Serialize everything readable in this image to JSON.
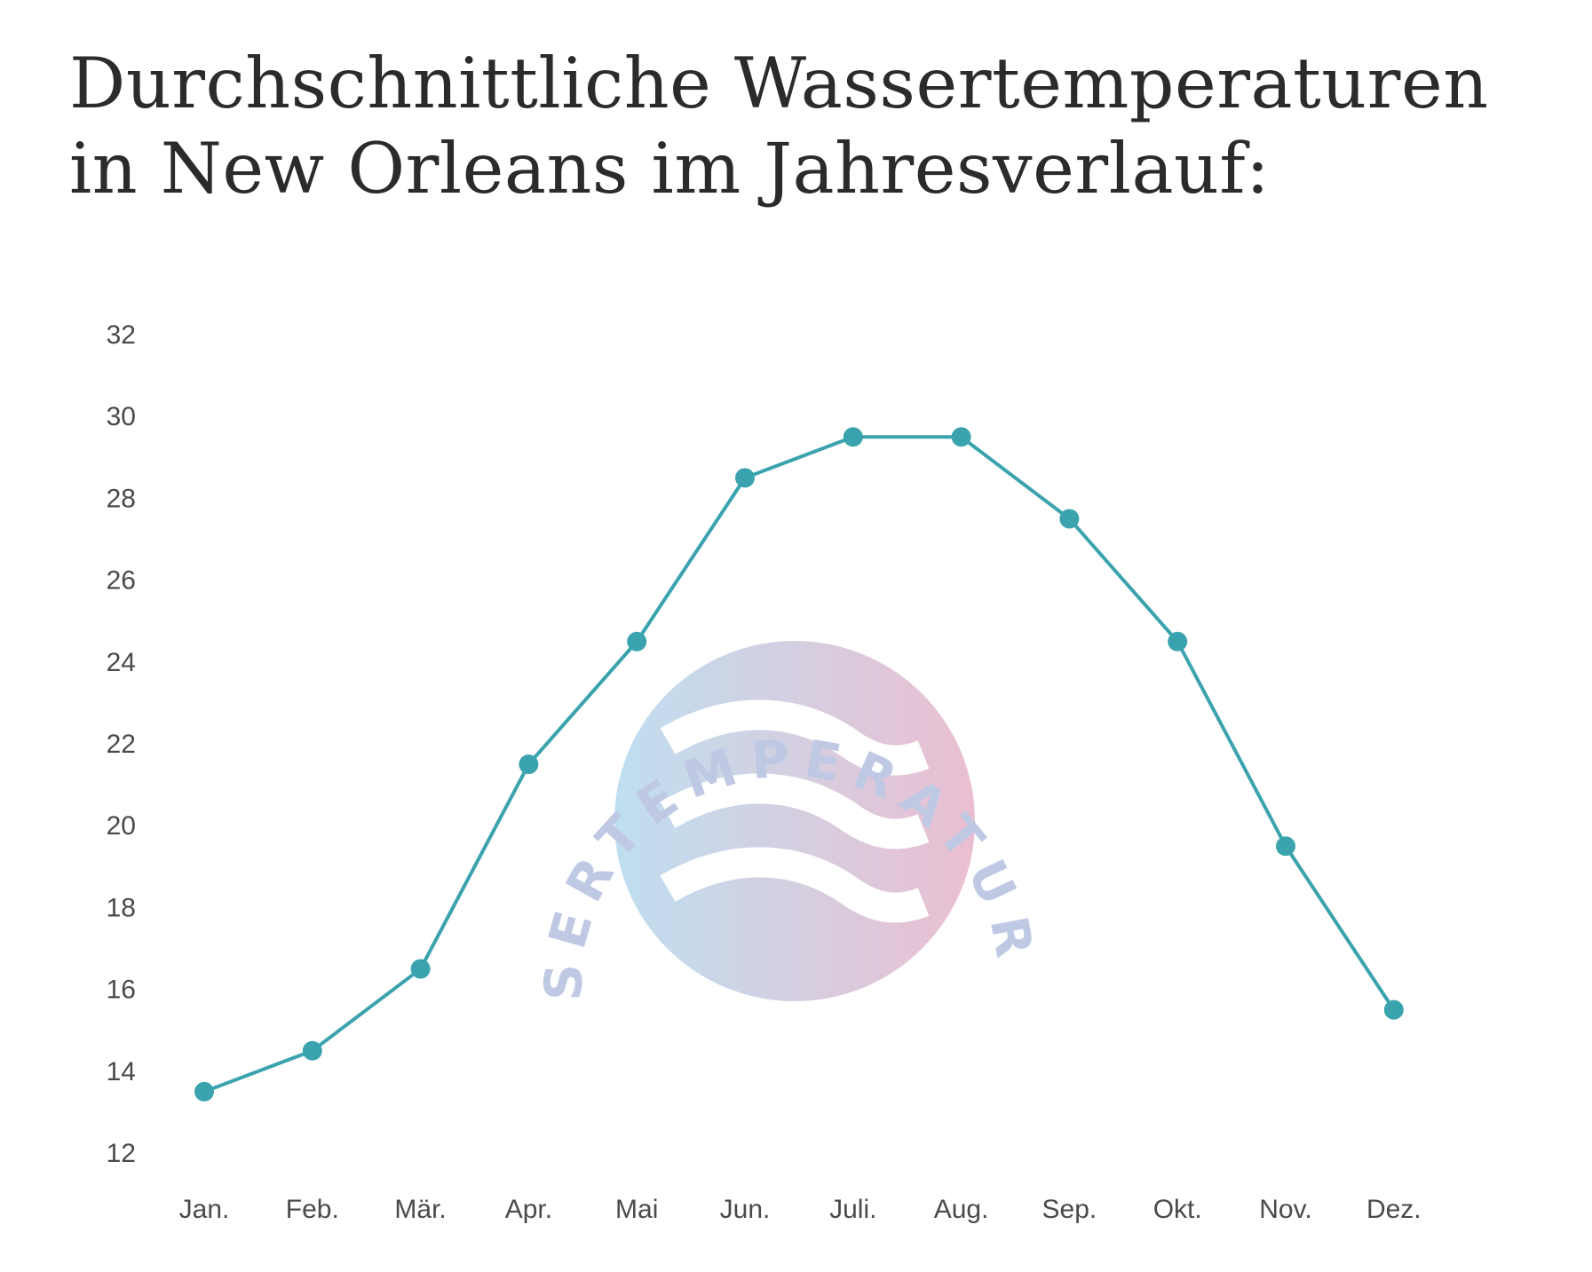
{
  "page": {
    "title": "Durchschnittliche Wassertemperaturen in New Orleans im Jahresverlauf:"
  },
  "watermark": {
    "text": "WASSERTEMPERATUR.ORG"
  },
  "colors": {
    "line": "#3aa3ae",
    "point": "#3aa3ae",
    "watermark_left": "#b8dcef",
    "watermark_right": "#e8b8cc"
  },
  "chart_data": {
    "type": "line",
    "categories": [
      "Jan.",
      "Feb.",
      "Mär.",
      "Apr.",
      "Mai",
      "Jun.",
      "Juli.",
      "Aug.",
      "Sep.",
      "Okt.",
      "Nov.",
      "Dez."
    ],
    "series": [
      {
        "values": [
          13.5,
          14.5,
          16.5,
          21.5,
          24.5,
          28.5,
          29.5,
          29.5,
          27.5,
          24.5,
          19.5,
          15.5
        ]
      }
    ],
    "ylim": [
      12,
      32
    ],
    "yticks": [
      12,
      14,
      16,
      18,
      20,
      22,
      24,
      26,
      28,
      30,
      32
    ],
    "grid": false,
    "legend": "none"
  }
}
